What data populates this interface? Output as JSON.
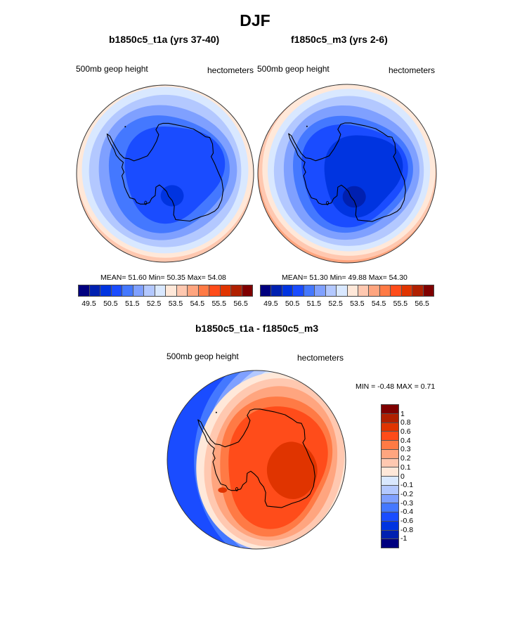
{
  "title": "DJF",
  "panels": [
    {
      "title": "b1850c5_t1a (yrs 37-40)",
      "left_label": "500mb geop height",
      "right_label": "hectometers",
      "stats": "MEAN=  51.60  Min=  50.35  Max=  54.08"
    },
    {
      "title": "f1850c5_m3 (yrs 2-6)",
      "left_label": "500mb geop height",
      "right_label": "hectometers",
      "stats": "MEAN=  51.30  Min=  49.88  Max=  54.30"
    },
    {
      "title": "b1850c5_t1a - f1850c5_m3",
      "left_label": "500mb geop height",
      "right_label": "hectometers",
      "stats": "MIN =  -0.48 MAX =   0.71"
    }
  ],
  "chart_data": [
    {
      "type": "heatmap",
      "projection": "polar-stereographic-south",
      "title": "b1850c5_t1a (yrs 37-40)",
      "variable": "500mb geop height",
      "units": "hectometers",
      "mean": 51.6,
      "min": 50.35,
      "max": 54.08,
      "colorbar": {
        "orientation": "horizontal",
        "levels": [
          49.5,
          50,
          50.5,
          51,
          51.5,
          52,
          52.5,
          53,
          53.5,
          54,
          54.5,
          55,
          55.5,
          56,
          56.5
        ],
        "tick_labels": [
          "49.5",
          "50.5",
          "51.5",
          "52.5",
          "53.5",
          "54.5",
          "55.5",
          "56.5"
        ],
        "colors": [
          "#00007f",
          "#0020b0",
          "#0034e0",
          "#1a4cff",
          "#4478ff",
          "#7fa0ff",
          "#b3c8ff",
          "#d9e8ff",
          "#ffe8d9",
          "#ffc8b0",
          "#ffa57f",
          "#ff7a45",
          "#ff4c1a",
          "#e03400",
          "#b02000",
          "#7f0000"
        ]
      }
    },
    {
      "type": "heatmap",
      "projection": "polar-stereographic-south",
      "title": "f1850c5_m3 (yrs 2-6)",
      "variable": "500mb geop height",
      "units": "hectometers",
      "mean": 51.3,
      "min": 49.88,
      "max": 54.3,
      "colorbar": {
        "orientation": "horizontal",
        "levels": [
          49.5,
          50,
          50.5,
          51,
          51.5,
          52,
          52.5,
          53,
          53.5,
          54,
          54.5,
          55,
          55.5,
          56,
          56.5
        ],
        "tick_labels": [
          "49.5",
          "50.5",
          "51.5",
          "52.5",
          "53.5",
          "54.5",
          "55.5",
          "56.5"
        ],
        "colors": [
          "#00007f",
          "#0020b0",
          "#0034e0",
          "#1a4cff",
          "#4478ff",
          "#7fa0ff",
          "#b3c8ff",
          "#d9e8ff",
          "#ffe8d9",
          "#ffc8b0",
          "#ffa57f",
          "#ff7a45",
          "#ff4c1a",
          "#e03400",
          "#b02000",
          "#7f0000"
        ]
      }
    },
    {
      "type": "heatmap",
      "projection": "polar-stereographic-south",
      "title": "b1850c5_t1a - f1850c5_m3",
      "variable": "500mb geop height",
      "units": "hectometers",
      "min": -0.48,
      "max": 0.71,
      "colorbar": {
        "orientation": "vertical",
        "levels": [
          1,
          0.8,
          0.6,
          0.4,
          0.3,
          0.2,
          0.1,
          0,
          -0.1,
          -0.2,
          -0.3,
          -0.4,
          -0.6,
          -0.8,
          -1
        ],
        "tick_labels": [
          "1",
          "0.8",
          "0.6",
          "0.4",
          "0.3",
          "0.2",
          "0.1",
          "0",
          "-0.1",
          "-0.2",
          "-0.3",
          "-0.4",
          "-0.6",
          "-0.8",
          "-1"
        ],
        "colors": [
          "#7f0000",
          "#b02000",
          "#e03400",
          "#ff4c1a",
          "#ff7a45",
          "#ffa57f",
          "#ffc8b0",
          "#ffe8d9",
          "#d9e8ff",
          "#b3c8ff",
          "#7fa0ff",
          "#4478ff",
          "#1a4cff",
          "#0034e0",
          "#0020b0",
          "#00007f"
        ]
      }
    }
  ]
}
